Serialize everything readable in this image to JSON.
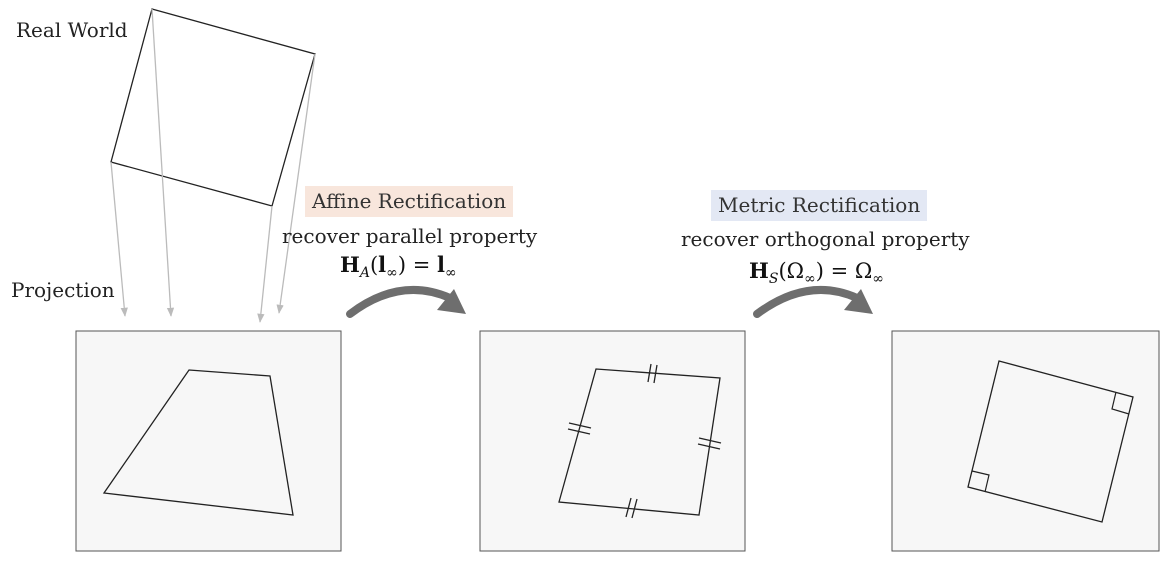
{
  "labels": {
    "real_world": "Real World",
    "projection": "Projection"
  },
  "affine": {
    "title": "Affine Rectification",
    "subtitle": "recover parallel property",
    "formula_H": "H",
    "formula_sub": "A",
    "formula_arg": "l",
    "formula_inf": "∞",
    "formula_rhs": "l",
    "highlight_color": "#f8e6dc"
  },
  "metric": {
    "title": "Metric Rectification",
    "subtitle": "recover orthogonal property",
    "formula_H": "H",
    "formula_sub": "S",
    "formula_arg": "Ω",
    "formula_inf": "∞",
    "formula_rhs": "Ω",
    "highlight_color": "#e3e8f4"
  },
  "colors": {
    "panel_fill": "#f7f7f7",
    "panel_stroke": "#555555",
    "shape_stroke": "#222222",
    "projection_line": "#bbbbbb",
    "curved_arrow": "#6e6e6e"
  }
}
